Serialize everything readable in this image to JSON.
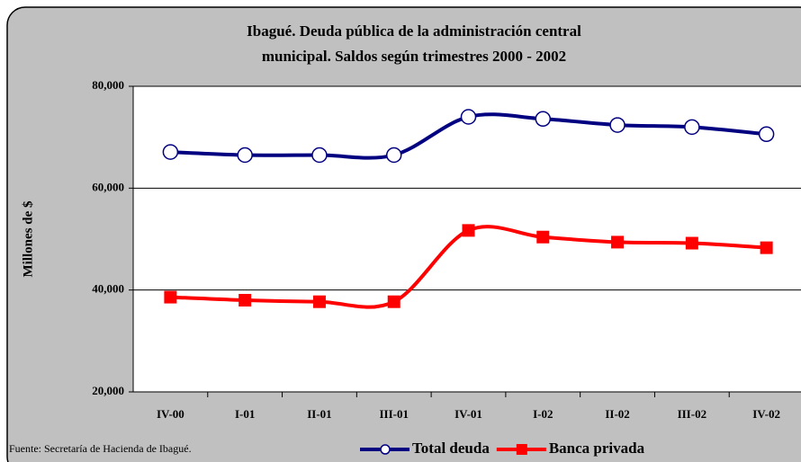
{
  "chart_data": {
    "type": "line",
    "title": "Ibagué. Deuda pública de la administración central",
    "subtitle": "municipal. Saldos según trimestres 2000 - 2002",
    "y_label": "Millones de $",
    "source": "Fuente: Secretaría de Hacienda de Ibagué.",
    "categories": [
      "IV-00",
      "I-01",
      "II-01",
      "III-01",
      "IV-01",
      "I-02",
      "II-02",
      "III-02",
      "IV-02"
    ],
    "series": [
      {
        "name": "Total deuda",
        "color": "#000080",
        "marker": "circle",
        "values": [
          67100,
          66500,
          66500,
          66500,
          74000,
          73600,
          72400,
          72000,
          70600
        ]
      },
      {
        "name": "Banca privada",
        "color": "#ff0000",
        "marker": "square",
        "values": [
          38600,
          38000,
          37700,
          37700,
          51700,
          50400,
          49400,
          49200,
          48300
        ]
      }
    ],
    "ylim": [
      20000,
      80000
    ],
    "yticks": [
      {
        "value": 20000,
        "label": "20,000"
      },
      {
        "value": 40000,
        "label": "40,000"
      },
      {
        "value": 60000,
        "label": "60,000"
      },
      {
        "value": 80000,
        "label": "80,000"
      }
    ],
    "grid": true,
    "smooth": true,
    "legend": "bottom"
  }
}
